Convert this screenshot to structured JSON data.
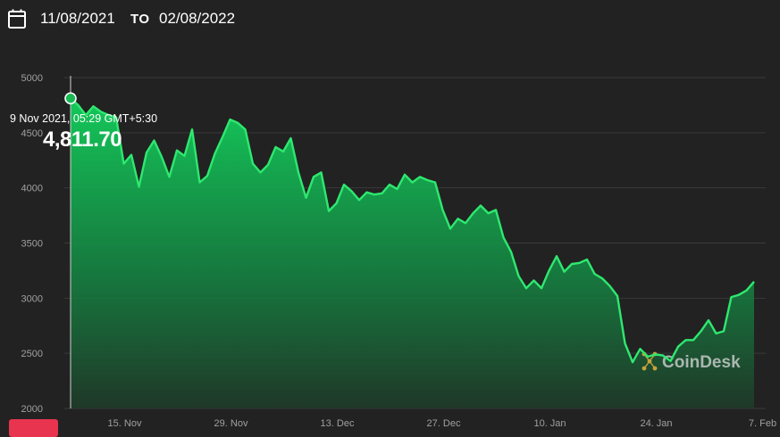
{
  "date_range": {
    "from": "11/08/2021",
    "to_label": "TO",
    "to": "02/08/2022"
  },
  "tooltip": {
    "date": "9 Nov 2021, 05:29 GMT+5:30",
    "value": "4,811.70"
  },
  "colors": {
    "background": "#222222",
    "line": "#2ee86f",
    "fill_top": "#14c95a",
    "fill_bottom": "#1f3a29",
    "grid": "#3a3a3a",
    "axis_text": "#a0a0a0",
    "accent_tab": "#e8344e"
  },
  "watermark": {
    "text": "CoinDesk",
    "icon": "coindesk-logo"
  },
  "chart_data": {
    "type": "area",
    "title": "",
    "xlabel": "",
    "ylabel": "",
    "ylim": [
      2000,
      5000
    ],
    "yticks": [
      2000,
      2500,
      3000,
      3500,
      4000,
      4500,
      5000
    ],
    "xticks": [
      {
        "label": "15. Nov",
        "day": 7
      },
      {
        "label": "29. Nov",
        "day": 21
      },
      {
        "label": "13. Dec",
        "day": 35
      },
      {
        "label": "27. Dec",
        "day": 49
      },
      {
        "label": "10. Jan",
        "day": 63
      },
      {
        "label": "24. Jan",
        "day": 77
      },
      {
        "label": "7. Feb",
        "day": 91
      }
    ],
    "grid": true,
    "series": [
      {
        "values": [
          [
            0,
            4812
          ],
          [
            1,
            4750
          ],
          [
            2,
            4660
          ],
          [
            3,
            4740
          ],
          [
            4,
            4690
          ],
          [
            5,
            4660
          ],
          [
            6,
            4640
          ],
          [
            7,
            4220
          ],
          [
            8,
            4300
          ],
          [
            9,
            4010
          ],
          [
            10,
            4320
          ],
          [
            11,
            4430
          ],
          [
            12,
            4280
          ],
          [
            13,
            4100
          ],
          [
            14,
            4340
          ],
          [
            15,
            4290
          ],
          [
            16,
            4530
          ],
          [
            17,
            4050
          ],
          [
            18,
            4110
          ],
          [
            19,
            4310
          ],
          [
            20,
            4460
          ],
          [
            21,
            4620
          ],
          [
            22,
            4590
          ],
          [
            23,
            4530
          ],
          [
            24,
            4220
          ],
          [
            25,
            4140
          ],
          [
            26,
            4210
          ],
          [
            27,
            4370
          ],
          [
            28,
            4330
          ],
          [
            29,
            4450
          ],
          [
            30,
            4140
          ],
          [
            31,
            3910
          ],
          [
            32,
            4100
          ],
          [
            33,
            4140
          ],
          [
            34,
            3790
          ],
          [
            35,
            3860
          ],
          [
            36,
            4030
          ],
          [
            37,
            3970
          ],
          [
            38,
            3890
          ],
          [
            39,
            3960
          ],
          [
            40,
            3940
          ],
          [
            41,
            3950
          ],
          [
            42,
            4030
          ],
          [
            43,
            3990
          ],
          [
            44,
            4120
          ],
          [
            45,
            4050
          ],
          [
            46,
            4100
          ],
          [
            47,
            4070
          ],
          [
            48,
            4050
          ],
          [
            49,
            3800
          ],
          [
            50,
            3630
          ],
          [
            51,
            3720
          ],
          [
            52,
            3680
          ],
          [
            53,
            3770
          ],
          [
            54,
            3840
          ],
          [
            55,
            3770
          ],
          [
            56,
            3800
          ],
          [
            57,
            3550
          ],
          [
            58,
            3420
          ],
          [
            59,
            3200
          ],
          [
            60,
            3090
          ],
          [
            61,
            3160
          ],
          [
            62,
            3090
          ],
          [
            63,
            3250
          ],
          [
            64,
            3380
          ],
          [
            65,
            3240
          ],
          [
            66,
            3310
          ],
          [
            67,
            3320
          ],
          [
            68,
            3350
          ],
          [
            69,
            3220
          ],
          [
            70,
            3180
          ],
          [
            71,
            3110
          ],
          [
            72,
            3020
          ],
          [
            73,
            2590
          ],
          [
            74,
            2420
          ],
          [
            75,
            2540
          ],
          [
            76,
            2470
          ],
          [
            77,
            2490
          ],
          [
            78,
            2480
          ],
          [
            79,
            2430
          ],
          [
            80,
            2560
          ],
          [
            81,
            2620
          ],
          [
            82,
            2620
          ],
          [
            83,
            2700
          ],
          [
            84,
            2800
          ],
          [
            85,
            2680
          ],
          [
            86,
            2700
          ],
          [
            87,
            3010
          ],
          [
            88,
            3030
          ],
          [
            89,
            3070
          ],
          [
            90,
            3150
          ]
        ]
      }
    ]
  }
}
